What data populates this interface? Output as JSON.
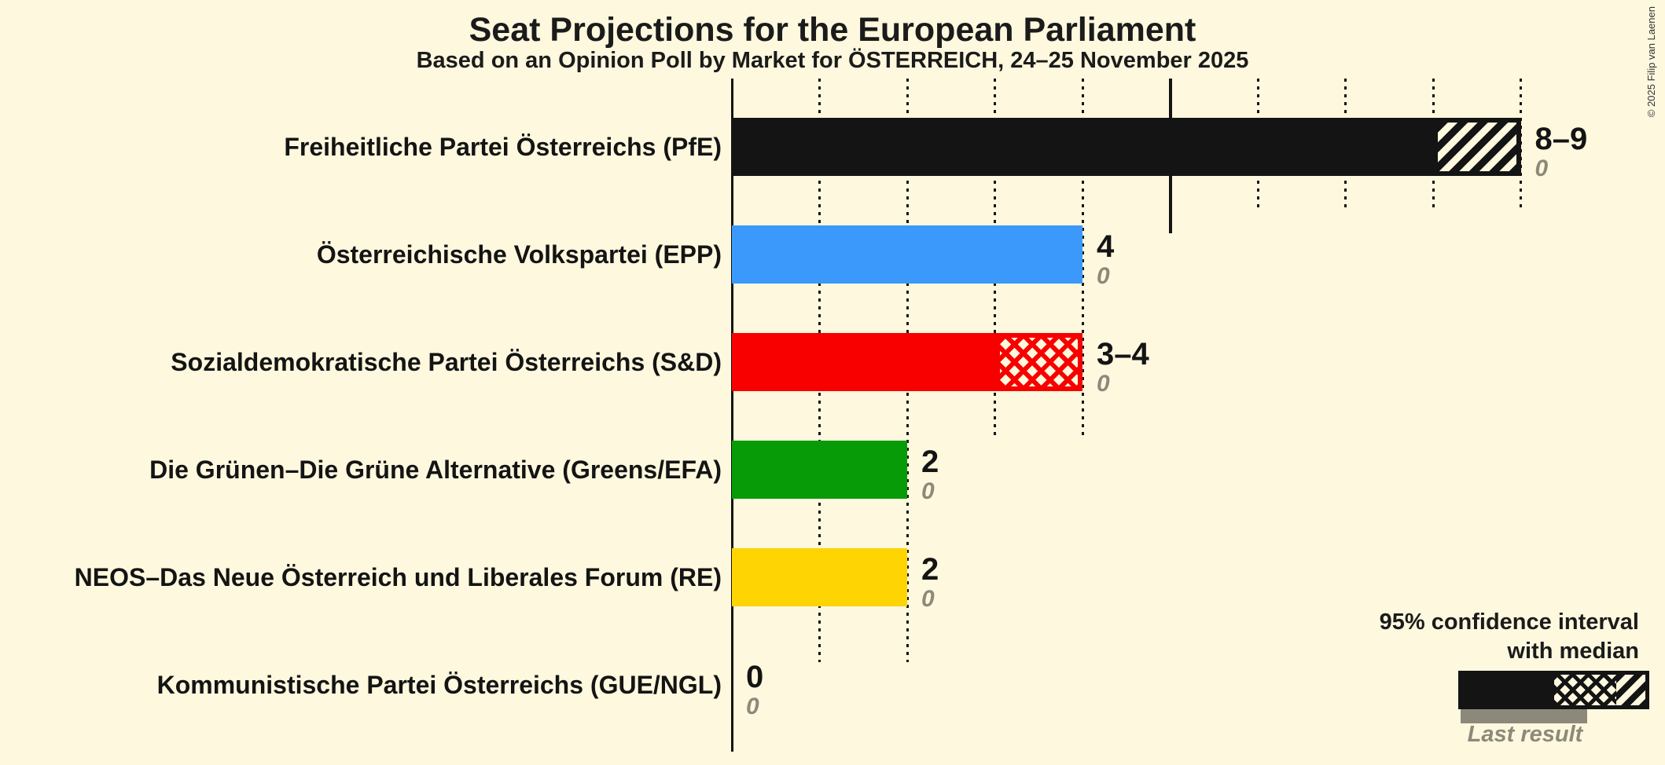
{
  "header": {
    "title": "Seat Projections for the European Parliament",
    "subtitle": "Based on an Opinion Poll by Market for ÖSTERREICH, 24–25 November 2025"
  },
  "chart_data": {
    "type": "bar",
    "orientation": "horizontal",
    "title": "Seat Projections for the European Parliament",
    "subtitle": "Based on an Opinion Poll by Market for ÖSTERREICH, 24–25 November 2025",
    "unit": "seats",
    "x_axis": {
      "min": 0,
      "max": 9,
      "gridline_step": 1,
      "major_gridline_at": 5,
      "grid": "dotted"
    },
    "categories": [
      "Freiheitliche Partei Österreichs (PfE)",
      "Österreichische Volkspartei (EPP)",
      "Sozialdemokratische Partei Österreichs (S&D)",
      "Die Grünen–Die Grüne Alternative (Greens/EFA)",
      "NEOS–Das Neue Österreich und Liberales Forum (RE)",
      "Kommunistische Partei Österreichs (GUE/NGL)"
    ],
    "parties": [
      {
        "label": "Freiheitliche Partei Österreichs (PfE)",
        "color": "#141414",
        "median": 8,
        "ci_upper": 9,
        "ci_pattern": "diagonal",
        "value_label": "8–9",
        "last_result": 0,
        "last_result_label": "0"
      },
      {
        "label": "Österreichische Volkspartei (EPP)",
        "color": "#3b99fc",
        "median": 4,
        "ci_upper": 4,
        "ci_pattern": "none",
        "value_label": "4",
        "last_result": 0,
        "last_result_label": "0"
      },
      {
        "label": "Sozialdemokratische Partei Österreichs (S&D)",
        "color": "#f90000",
        "median": 3,
        "ci_upper": 4,
        "ci_pattern": "cross",
        "value_label": "3–4",
        "last_result": 0,
        "last_result_label": "0"
      },
      {
        "label": "Die Grünen–Die Grüne Alternative (Greens/EFA)",
        "color": "#089b08",
        "median": 2,
        "ci_upper": 2,
        "ci_pattern": "none",
        "value_label": "2",
        "last_result": 0,
        "last_result_label": "0"
      },
      {
        "label": "NEOS–Das Neue Österreich und Liberales Forum (RE)",
        "color": "#fed402",
        "median": 2,
        "ci_upper": 2,
        "ci_pattern": "none",
        "value_label": "2",
        "last_result": 0,
        "last_result_label": "0"
      },
      {
        "label": "Kommunistische Partei Österreichs (GUE/NGL)",
        "color": "#141414",
        "median": 0,
        "ci_upper": 0,
        "ci_pattern": "none",
        "value_label": "0",
        "last_result": 0,
        "last_result_label": "0"
      }
    ]
  },
  "legend": {
    "ci_line1": "95% confidence interval",
    "ci_line2": "with median",
    "last_result_label": "Last result",
    "bar_color": "#141414",
    "last_result_color": "#8d897a"
  },
  "footer": {
    "copyright": "© 2025 Filip van Laenen"
  },
  "colors": {
    "background": "#fdf8de",
    "ink": "#141414",
    "gray": "#8d897a"
  }
}
